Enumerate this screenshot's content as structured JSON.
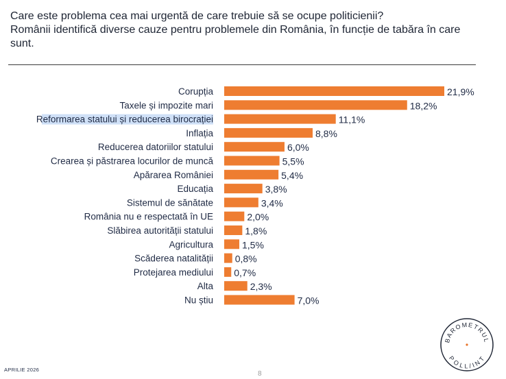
{
  "title": {
    "line1": "Care este problema cea mai urgentă de care trebuie să se ocupe politicienii?",
    "line2": "Românii identifică diverse cauze pentru problemele din România, în funcție de tabăra în care",
    "line3": "sunt."
  },
  "footer": {
    "date": "APRILIE 2026",
    "page": "8"
  },
  "logo": {
    "text_top": "BAROMETRUL",
    "text_bottom": "POLL/INT",
    "accent_color": "#e8742a"
  },
  "colors": {
    "bar": "#ee7d31",
    "highlight": "#cfe0f7"
  },
  "chart_data": {
    "type": "bar",
    "orientation": "horizontal",
    "categories": [
      "Corupția",
      "Taxele și impozite mari",
      "Reformarea statului și reducerea birocrației",
      "Inflația",
      "Reducerea datoriilor statului",
      "Crearea și păstrarea locurilor de muncă",
      "Apărarea României",
      "Educația",
      "Sistemul de sănătate",
      "România nu e respectată în UE",
      "Slăbirea autorității statului",
      "Agricultura",
      "Scăderea natalității",
      "Protejarea mediului",
      "Alta",
      "Nu știu"
    ],
    "values": [
      21.9,
      18.2,
      11.1,
      8.8,
      6.0,
      5.5,
      5.4,
      3.8,
      3.4,
      2.0,
      1.8,
      1.5,
      0.8,
      0.7,
      2.3,
      7.0
    ],
    "value_labels": [
      "21,9%",
      "18,2%",
      "11,1%",
      "8,8%",
      "6,0%",
      "5,5%",
      "5,4%",
      "3,8%",
      "3,4%",
      "2,0%",
      "1,8%",
      "1,5%",
      "0,8%",
      "0,7%",
      "2,3%",
      "7,0%"
    ],
    "highlighted_category": "Reformarea statului și reducerea birocrației",
    "xlim": [
      0,
      21.9
    ],
    "grid": false,
    "legend": "none"
  }
}
